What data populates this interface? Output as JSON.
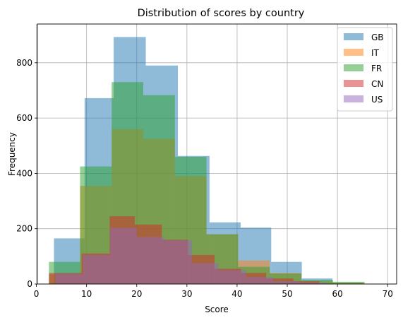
{
  "chart_data": {
    "type": "bar",
    "title": "Distribution of scores by country",
    "xlabel": "Score",
    "ylabel": "Frequency",
    "xlim": [
      0.2,
      71.8
    ],
    "ylim": [
      0,
      940
    ],
    "xticks": [
      0,
      10,
      20,
      30,
      40,
      50,
      60,
      70
    ],
    "yticks": [
      0,
      200,
      400,
      600,
      800
    ],
    "grid": true,
    "legend_position": "top-right",
    "alpha": 0.5,
    "series": [
      {
        "name": "GB",
        "color": "#1f77b4",
        "bins": [
          {
            "x0": 3.5,
            "x1": 9.6,
            "count": 165
          },
          {
            "x0": 9.6,
            "x1": 15.4,
            "count": 672
          },
          {
            "x0": 15.4,
            "x1": 21.8,
            "count": 893
          },
          {
            "x0": 21.8,
            "x1": 28.2,
            "count": 790
          },
          {
            "x0": 28.2,
            "x1": 34.5,
            "count": 463
          },
          {
            "x0": 34.5,
            "x1": 40.7,
            "count": 223
          },
          {
            "x0": 40.7,
            "x1": 46.8,
            "count": 204
          },
          {
            "x0": 46.8,
            "x1": 52.9,
            "count": 80
          },
          {
            "x0": 52.9,
            "x1": 59.0,
            "count": 20
          },
          {
            "x0": 59.0,
            "x1": 65.1,
            "count": 5
          }
        ]
      },
      {
        "name": "IT",
        "color": "#ff7f0e",
        "bins": [
          {
            "x0": 2.5,
            "x1": 8.7,
            "count": 35
          },
          {
            "x0": 8.7,
            "x1": 15.0,
            "count": 355
          },
          {
            "x0": 15.0,
            "x1": 21.3,
            "count": 560
          },
          {
            "x0": 21.3,
            "x1": 27.6,
            "count": 525
          },
          {
            "x0": 27.6,
            "x1": 33.9,
            "count": 390
          },
          {
            "x0": 33.9,
            "x1": 40.2,
            "count": 180
          },
          {
            "x0": 40.2,
            "x1": 46.5,
            "count": 85
          },
          {
            "x0": 46.5,
            "x1": 52.8,
            "count": 40
          },
          {
            "x0": 52.8,
            "x1": 59.1,
            "count": 10
          },
          {
            "x0": 59.1,
            "x1": 65.4,
            "count": 5
          }
        ]
      },
      {
        "name": "FR",
        "color": "#2ca02c",
        "bins": [
          {
            "x0": 2.5,
            "x1": 8.7,
            "count": 80
          },
          {
            "x0": 8.7,
            "x1": 15.0,
            "count": 425
          },
          {
            "x0": 15.0,
            "x1": 21.3,
            "count": 730
          },
          {
            "x0": 21.3,
            "x1": 27.6,
            "count": 683
          },
          {
            "x0": 27.6,
            "x1": 33.9,
            "count": 460
          },
          {
            "x0": 33.9,
            "x1": 40.2,
            "count": 180
          },
          {
            "x0": 40.2,
            "x1": 46.5,
            "count": 62
          },
          {
            "x0": 46.5,
            "x1": 52.8,
            "count": 38
          },
          {
            "x0": 52.8,
            "x1": 59.1,
            "count": 15
          },
          {
            "x0": 59.1,
            "x1": 65.4,
            "count": 8
          }
        ]
      },
      {
        "name": "CN",
        "color": "#d62728",
        "bins": [
          {
            "x0": 2.5,
            "x1": 9.0,
            "count": 40
          },
          {
            "x0": 9.0,
            "x1": 14.6,
            "count": 110
          },
          {
            "x0": 14.6,
            "x1": 19.6,
            "count": 245
          },
          {
            "x0": 19.6,
            "x1": 25.0,
            "count": 215
          },
          {
            "x0": 25.0,
            "x1": 30.2,
            "count": 160
          },
          {
            "x0": 30.2,
            "x1": 35.5,
            "count": 105
          },
          {
            "x0": 35.5,
            "x1": 40.8,
            "count": 55
          },
          {
            "x0": 40.8,
            "x1": 45.8,
            "count": 40
          },
          {
            "x0": 45.8,
            "x1": 51.2,
            "count": 20
          },
          {
            "x0": 51.2,
            "x1": 56.4,
            "count": 10
          }
        ]
      },
      {
        "name": "US",
        "color": "#9467bd",
        "bins": [
          {
            "x0": 3.8,
            "x1": 9.3,
            "count": 35
          },
          {
            "x0": 9.3,
            "x1": 14.7,
            "count": 105
          },
          {
            "x0": 14.7,
            "x1": 20.0,
            "count": 203
          },
          {
            "x0": 20.0,
            "x1": 25.5,
            "count": 170
          },
          {
            "x0": 25.5,
            "x1": 31.0,
            "count": 158
          },
          {
            "x0": 31.0,
            "x1": 36.3,
            "count": 75
          },
          {
            "x0": 36.3,
            "x1": 41.8,
            "count": 50
          },
          {
            "x0": 41.8,
            "x1": 47.2,
            "count": 25
          },
          {
            "x0": 47.2,
            "x1": 52.6,
            "count": 10
          },
          {
            "x0": 52.6,
            "x1": 58.0,
            "count": 5
          }
        ]
      }
    ]
  }
}
